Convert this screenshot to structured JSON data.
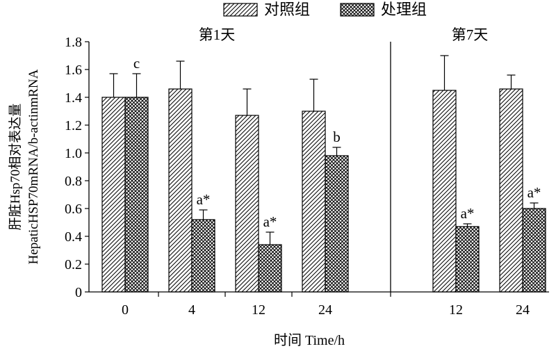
{
  "chart_data": {
    "type": "bar",
    "ylabel_lines": [
      "肝脏Hsp70相对表达量",
      "HepaticHSP70mRNA/b-actinmRNA"
    ],
    "xlabel": "时间 Time/h",
    "ylim": [
      0,
      1.8
    ],
    "yticks": [
      "0",
      "0.2",
      "0.4",
      "0.6",
      "0.8",
      "1.0",
      "1.2",
      "1.4",
      "1.6",
      "1.8"
    ],
    "legend": {
      "placement": "top-center",
      "entries": [
        "对照组",
        "处理组"
      ]
    },
    "panels": [
      {
        "title": "第1天",
        "categories": [
          "0",
          "4",
          "12",
          "24"
        ],
        "series": [
          {
            "name": "对照组",
            "pattern": "diagonal-hatch",
            "values": [
              1.4,
              1.46,
              1.27,
              1.3
            ],
            "errors": [
              0.17,
              0.2,
              0.19,
              0.23
            ],
            "labels": [
              "",
              "",
              "",
              ""
            ]
          },
          {
            "name": "处理组",
            "pattern": "crosshatch",
            "values": [
              1.4,
              0.52,
              0.34,
              0.98
            ],
            "errors": [
              0.17,
              0.07,
              0.09,
              0.06
            ],
            "labels": [
              "c",
              "a*",
              "a*",
              "b"
            ]
          }
        ]
      },
      {
        "title": "第7天",
        "categories": [
          "12",
          "24"
        ],
        "series": [
          {
            "name": "对照组",
            "pattern": "diagonal-hatch",
            "values": [
              1.45,
              1.46
            ],
            "errors": [
              0.25,
              0.1
            ],
            "labels": [
              "",
              ""
            ]
          },
          {
            "name": "处理组",
            "pattern": "crosshatch",
            "values": [
              0.47,
              0.6
            ],
            "errors": [
              0.02,
              0.04
            ],
            "labels": [
              "a*",
              "a*"
            ]
          }
        ]
      }
    ]
  }
}
